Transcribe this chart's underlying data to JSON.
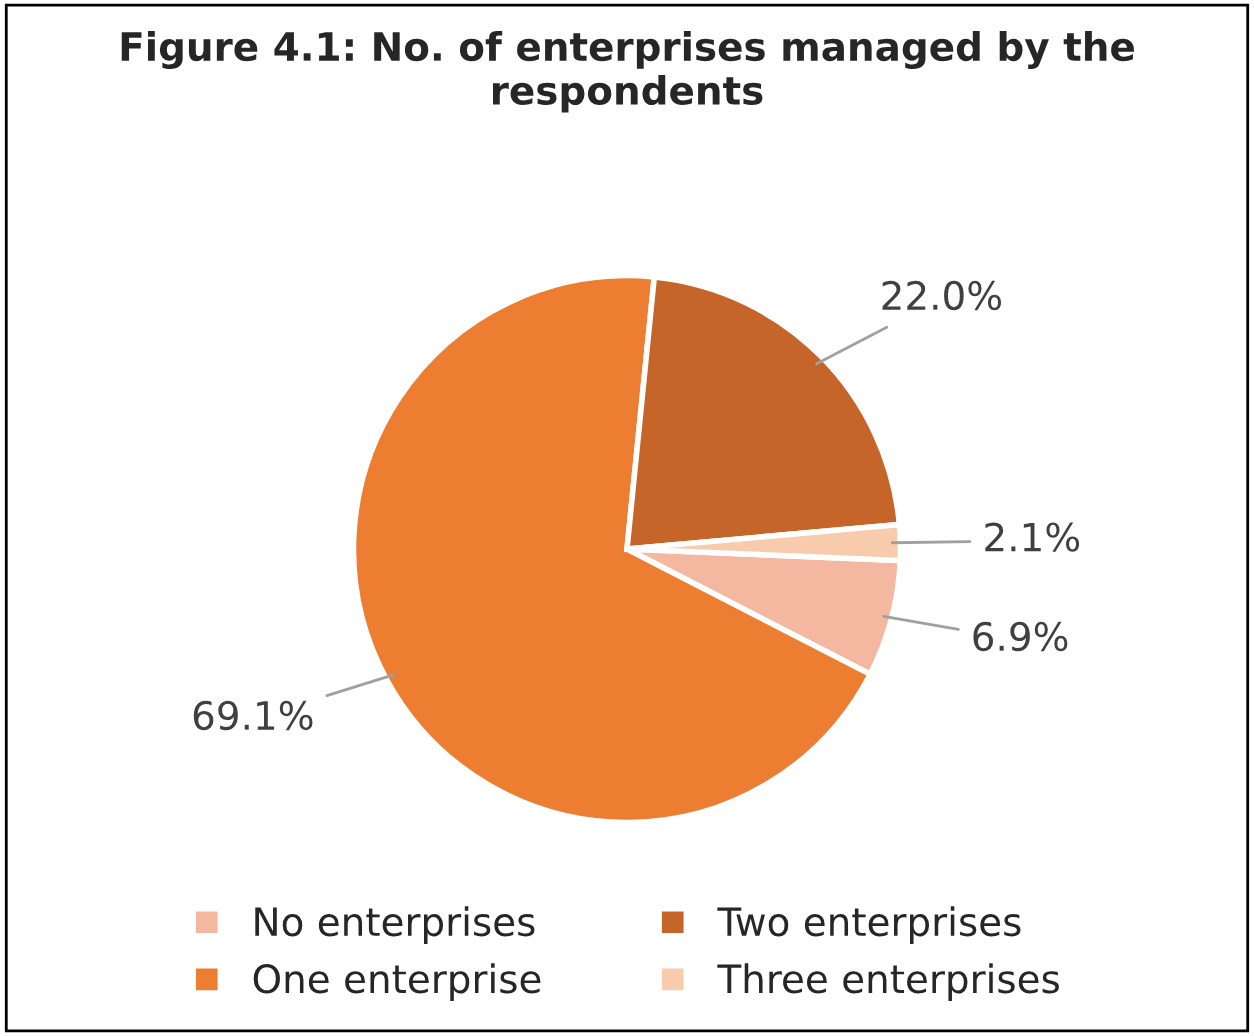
{
  "chart_data": {
    "type": "pie",
    "title": "Figure 4.1: No. of enterprises managed by the respondents",
    "categories": [
      "No enterprises",
      "One enterprise",
      "Two enterprises",
      "Three enterprises"
    ],
    "values": [
      6.9,
      69.1,
      22.0,
      2.1
    ],
    "value_labels": [
      "6.9%",
      "69.1%",
      "22.0%",
      "2.1%"
    ],
    "colors": [
      "#f4b8a0",
      "#ed7d31",
      "#c5652a",
      "#f8cbad"
    ],
    "legend": "bottom"
  }
}
